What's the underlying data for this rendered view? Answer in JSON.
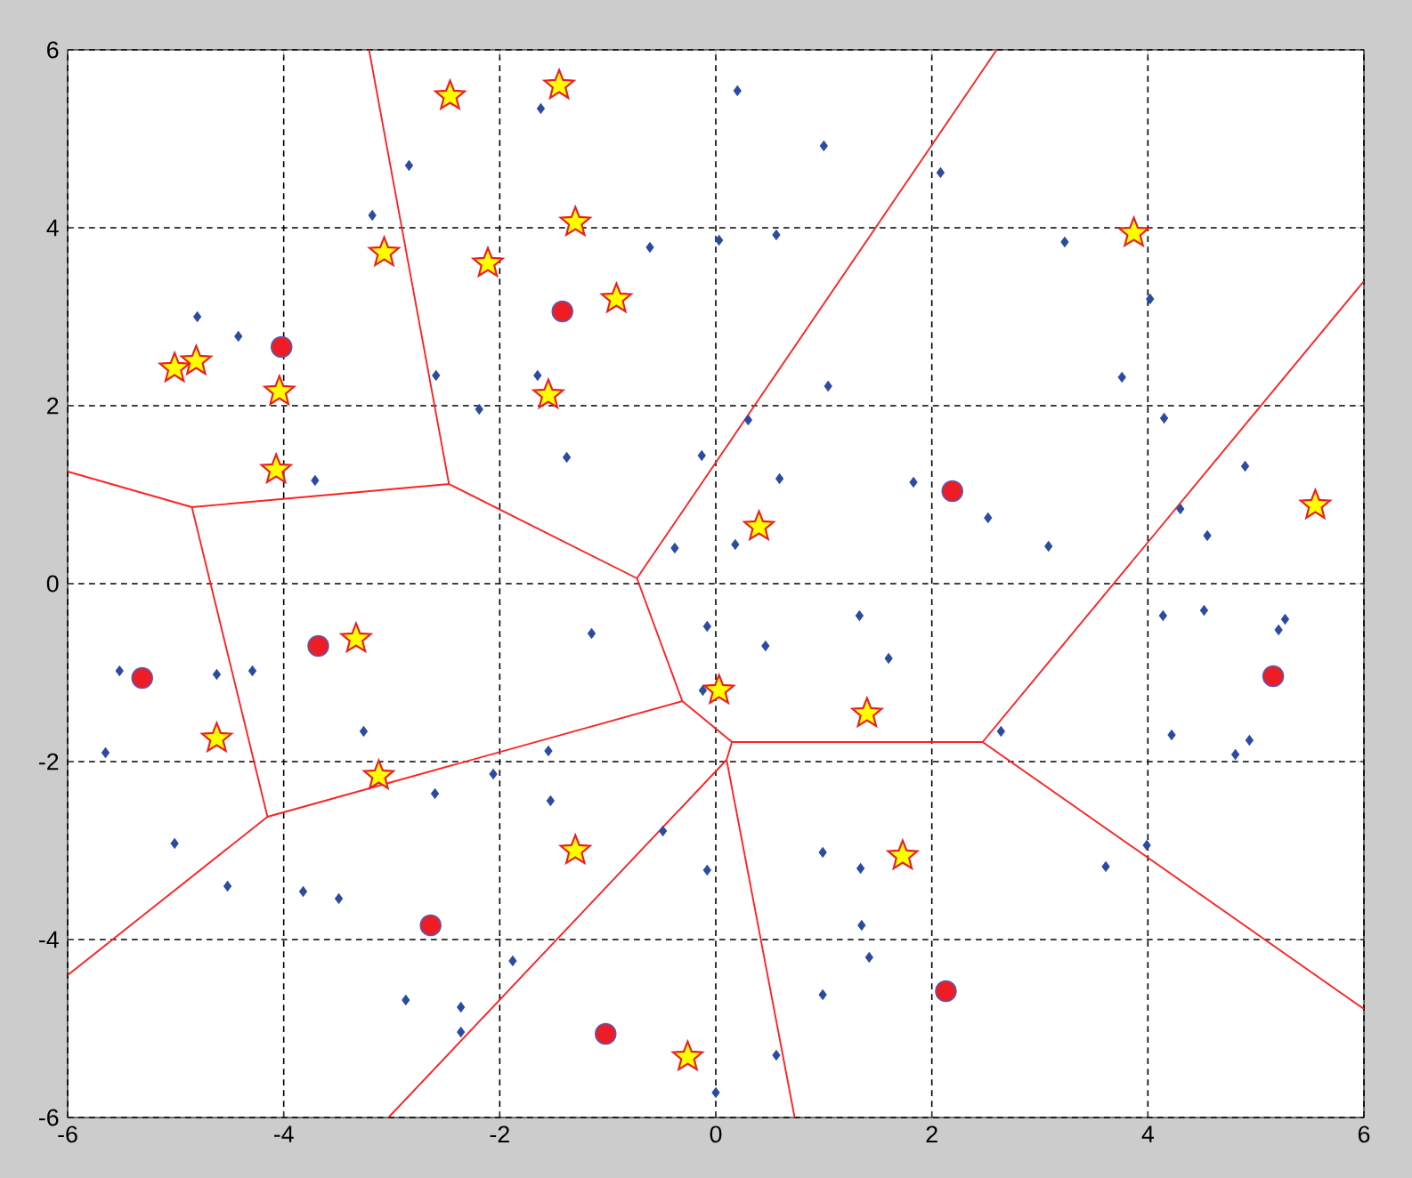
{
  "chart_data": {
    "type": "scatter",
    "xlim": [
      -6,
      6
    ],
    "ylim": [
      -6,
      6
    ],
    "xticks": [
      -6,
      -4,
      -2,
      0,
      2,
      4,
      6
    ],
    "yticks": [
      -6,
      -4,
      -2,
      0,
      2,
      4,
      6
    ],
    "grid": true,
    "series": [
      {
        "type": "line",
        "color": "#ff2020",
        "marker": "none",
        "x": [
          -6,
          -4.85,
          -2.47,
          -0.73,
          -0.31,
          0.15,
          2.47,
          6,
          null,
          -4.85,
          -4.15,
          -0.31,
          null,
          0.1,
          0.73,
          null,
          -2.47,
          -3.21,
          null,
          -0.73,
          2.6,
          null,
          -4.15,
          -6,
          null,
          0.15,
          0.1,
          -3.03,
          null,
          2.47,
          6
        ],
        "values": [
          1.26,
          0.86,
          1.12,
          0.06,
          -1.32,
          -1.78,
          -1.78,
          3.4,
          null,
          0.86,
          -2.62,
          -1.32,
          null,
          -1.98,
          -6,
          null,
          1.12,
          6,
          null,
          0.06,
          6,
          null,
          -2.62,
          -4.4,
          null,
          -1.78,
          -1.98,
          -6,
          null,
          -1.78,
          -4.78
        ]
      },
      {
        "color": "#2b4ba0",
        "marker": "diamond",
        "x": [
          -1.62,
          0.2,
          1.0,
          -2.84,
          -3.18,
          2.08,
          0.56,
          0.03,
          -0.61,
          -4.8,
          -4.42,
          -2.59,
          -2.19,
          -1.65,
          -1.38,
          -0.13,
          -0.38,
          -3.71,
          3.23,
          4.02,
          3.76,
          4.15,
          4.9,
          4.3,
          4.55,
          1.04,
          0.3,
          0.59,
          1.83,
          2.52,
          3.08,
          0.18,
          -5.52,
          -5.65,
          -4.62,
          -4.29,
          -3.26,
          -5.01,
          -4.52,
          -3.82,
          -3.49,
          -2.6,
          -2.06,
          -1.55,
          -1.53,
          -1.15,
          -0.08,
          -0.12,
          -0.49,
          -0.08,
          -1.88,
          -2.87,
          -2.36,
          -2.36,
          0.0,
          1.33,
          0.46,
          1.6,
          2.64,
          4.14,
          4.52,
          5.21,
          5.27,
          4.22,
          4.94,
          4.81,
          3.99,
          3.61,
          0.99,
          1.34,
          1.35,
          1.42,
          0.99,
          0.56
        ],
        "values": [
          5.34,
          5.54,
          4.92,
          4.7,
          4.14,
          4.62,
          3.92,
          3.86,
          3.78,
          3.0,
          2.78,
          2.34,
          1.96,
          2.34,
          1.42,
          1.44,
          0.4,
          1.16,
          3.84,
          3.2,
          2.32,
          1.86,
          1.32,
          0.84,
          0.54,
          2.22,
          1.84,
          1.18,
          1.14,
          0.74,
          0.42,
          0.44,
          -0.98,
          -1.9,
          -1.02,
          -0.98,
          -1.66,
          -2.92,
          -3.4,
          -3.46,
          -3.54,
          -2.36,
          -2.14,
          -1.88,
          -2.44,
          -0.56,
          -0.48,
          -1.2,
          -2.78,
          -3.22,
          -4.24,
          -4.68,
          -4.76,
          -5.04,
          -5.72,
          -0.36,
          -0.7,
          -0.84,
          -1.66,
          -0.36,
          -0.3,
          -0.52,
          -0.4,
          -1.7,
          -1.76,
          -1.92,
          -2.94,
          -3.18,
          -3.02,
          -3.2,
          -3.84,
          -4.2,
          -4.62,
          -5.3
        ]
      },
      {
        "color": "#ee1c24",
        "marker": "circle",
        "x": [
          -1.42,
          -4.02,
          2.19,
          -3.68,
          -5.31,
          5.16,
          -2.64,
          2.13,
          -1.02
        ],
        "values": [
          3.06,
          2.66,
          1.04,
          -0.7,
          -1.06,
          -1.04,
          -3.84,
          -4.58,
          -5.06
        ]
      },
      {
        "color": "#ffff00",
        "marker": "star",
        "x": [
          -2.46,
          -1.45,
          -1.3,
          -3.07,
          -2.11,
          -0.92,
          -5.01,
          -4.81,
          -4.04,
          -1.55,
          -4.07,
          0.4,
          3.87,
          5.55,
          -3.33,
          -4.62,
          -3.12,
          0.03,
          1.4,
          -1.3,
          1.73,
          -0.26
        ],
        "values": [
          5.48,
          5.6,
          4.06,
          3.72,
          3.6,
          3.2,
          2.42,
          2.5,
          2.16,
          2.12,
          1.28,
          0.64,
          3.94,
          0.88,
          -0.62,
          -1.74,
          -2.16,
          -1.2,
          -1.46,
          -3.0,
          -3.06,
          -5.32
        ]
      }
    ]
  }
}
